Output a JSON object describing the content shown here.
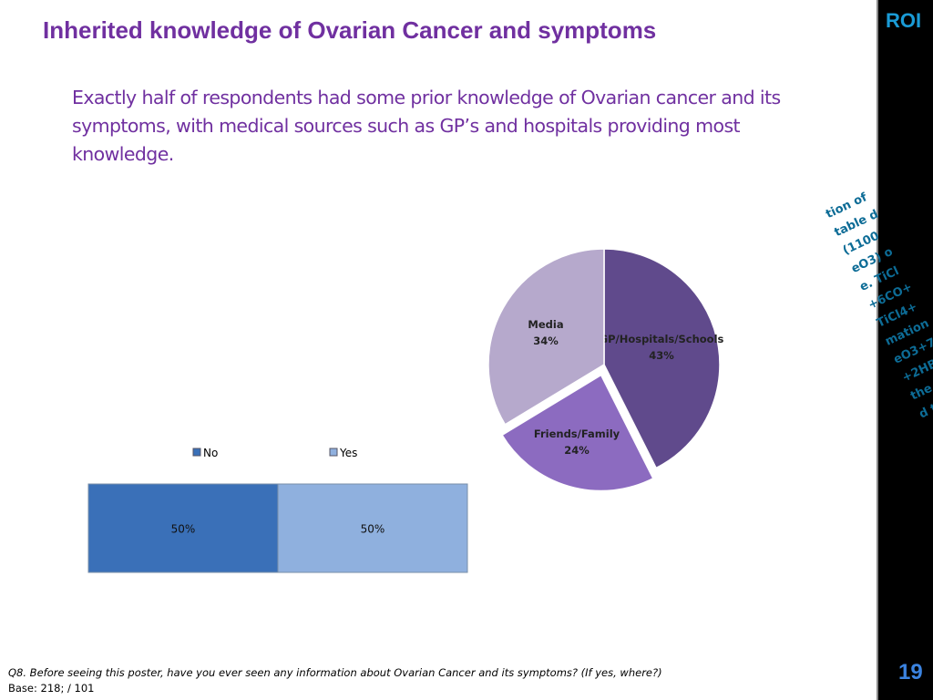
{
  "title": "Inherited knowledge of Ovarian Cancer and symptoms",
  "intro": "Exactly half of respondents had some prior knowledge of Ovarian cancer and its symptoms, with medical sources such as GP’s and hospitals providing most knowledge.",
  "sidebar": {
    "logo": "ROI",
    "page_number": "19"
  },
  "footer": {
    "question": "Q8. Before seeing this poster, have you ever seen any information about Ovarian Cancer and its symptoms? (If yes, where?)",
    "base": "Base: 218; / 101"
  },
  "chart_data": [
    {
      "type": "bar",
      "stacked": true,
      "orientation": "horizontal",
      "legend_position": "top",
      "series": [
        {
          "name": "No",
          "values": [
            50
          ],
          "label": "50%",
          "color": "#3a70b8"
        },
        {
          "name": "Yes",
          "values": [
            50
          ],
          "label": "50%",
          "color": "#8fb0de"
        }
      ]
    },
    {
      "type": "pie",
      "exploded": [
        "Friends/Family"
      ],
      "categories": [
        "GP/Hospitals/Schools",
        "Friends/Family",
        "Media"
      ],
      "values": [
        43,
        24,
        34
      ],
      "labels": [
        "43%",
        "24%",
        "34%"
      ],
      "colors": [
        "#604a8c",
        "#8c6bc0",
        "#b6a9cc"
      ]
    }
  ]
}
